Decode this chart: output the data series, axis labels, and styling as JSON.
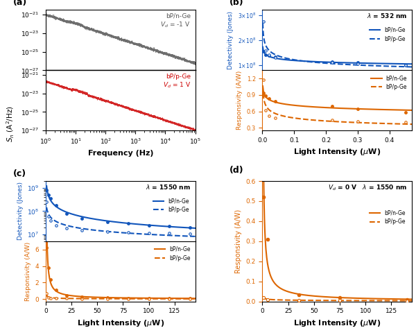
{
  "panel_a": {
    "label_gray": "bP/n-Ge\n$V_d$ = -1 V",
    "label_red": "bP/p-Ge\n$V_d$ = 1 V",
    "xlabel": "Frequency (Hz)",
    "ylabel": "$S_n$ (A$^2$/Hz)",
    "panel_label": "(a)",
    "color_gray": "#555555",
    "color_red": "#cc0000"
  },
  "panel_b": {
    "x_data": [
      0.003,
      0.01,
      0.02,
      0.04,
      0.22,
      0.3,
      0.45
    ],
    "det_nGe": [
      155000000.0,
      142000000.0,
      138000000.0,
      132000000.0,
      115000000.0,
      110000000.0,
      100000000.0
    ],
    "det_pGe": [
      275000000.0,
      158000000.0,
      142000000.0,
      130000000.0,
      110000000.0,
      105000000.0,
      100000000.0
    ],
    "resp_nGe": [
      0.93,
      0.88,
      0.83,
      0.78,
      0.7,
      0.65,
      0.58
    ],
    "resp_pGe": [
      1.18,
      0.62,
      0.52,
      0.48,
      0.44,
      0.42,
      0.4
    ],
    "xlabel": "Light Intensity ($\\mu$W)",
    "ylabel_blue": "Detectivity (Jones)",
    "ylabel_orange": "Responsivity (A/W)",
    "panel_label": "(b)",
    "lambda_label": "$\\lambda$ = 532 nm",
    "color_blue": "#1155bb",
    "color_orange": "#dd6600",
    "xlim": [
      0,
      0.47
    ],
    "ylim_det": [
      80000000.0,
      320000000.0
    ],
    "ylim_resp": [
      0.25,
      1.35
    ]
  },
  "panel_c": {
    "x_data": [
      1,
      3,
      5,
      10,
      20,
      35,
      60,
      80,
      100,
      120,
      140
    ],
    "det_nGe": [
      800000000.0,
      500000000.0,
      350000000.0,
      180000000.0,
      80000000.0,
      50000000.0,
      35000000.0,
      30000000.0,
      25000000.0,
      22000000.0,
      20000000.0
    ],
    "det_pGe": [
      250000000.0,
      60000000.0,
      40000000.0,
      25000000.0,
      18000000.0,
      15000000.0,
      13000000.0,
      12000000.0,
      11500000.0,
      11000000.0,
      10500000.0
    ],
    "resp_nGe": [
      6.2,
      3.8,
      2.4,
      1.1,
      0.45,
      0.28,
      0.16,
      0.13,
      0.11,
      0.09,
      0.08
    ],
    "resp_pGe": [
      0.65,
      0.22,
      0.13,
      0.09,
      0.06,
      0.05,
      0.04,
      0.035,
      0.03,
      0.028,
      0.025
    ],
    "xlabel": "Light Intensity ($\\mu$W)",
    "ylabel_blue": "Detectivity (Jones)",
    "ylabel_orange": "Responsivity (A/W)",
    "panel_label": "(c)",
    "lambda_label": "$\\lambda$ = 1550 nm",
    "color_blue": "#1155bb",
    "color_orange": "#dd6600",
    "xlim": [
      0,
      145
    ],
    "ylim_det": [
      5000000.0,
      2000000000.0
    ],
    "ylim_resp": [
      -0.3,
      7
    ]
  },
  "panel_d": {
    "x_data": [
      1,
      5,
      35,
      75,
      140
    ],
    "resp_nGe": [
      0.52,
      0.31,
      0.035,
      0.02,
      0.01
    ],
    "resp_pGe": [
      0.02,
      0.01,
      0.007,
      0.005,
      0.004
    ],
    "xlabel": "Light Intensity ($\\mu$W)",
    "ylabel": "Responsivity (A/W)",
    "panel_label": "(d)",
    "lambda_label": "$\\lambda$ = 1550 nm",
    "vd_label": "$V_d$ = 0 V",
    "color_orange": "#dd6600",
    "xlim": [
      0,
      145
    ],
    "ylim": [
      0,
      0.6
    ]
  }
}
